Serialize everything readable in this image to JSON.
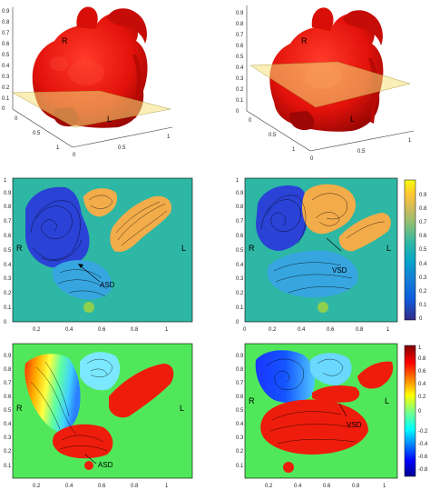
{
  "panels": {
    "heart_left": {
      "label_r": "R",
      "label_l": "L"
    },
    "heart_right": {
      "label_r": "R",
      "label_l": "L"
    },
    "mid_left": {
      "label_r": "R",
      "label_l": "L",
      "annotation": "ASD"
    },
    "mid_right": {
      "label_r": "R",
      "label_l": "L",
      "annotation": "VSD"
    },
    "bot_left": {
      "label_r": "R",
      "label_l": "L",
      "annotation": "ASD"
    },
    "bot_right": {
      "label_r": "R",
      "label_l": "L",
      "annotation": "VSD"
    }
  },
  "heart_axes": {
    "z_ticks": [
      "0",
      "0.1",
      "0.2",
      "0.3",
      "0.4",
      "0.5",
      "0.6",
      "0.7",
      "0.8",
      "0.9"
    ],
    "y_ticks": [
      "0",
      "0.5",
      "1"
    ],
    "x_ticks": [
      "0",
      "0.5",
      "1"
    ]
  },
  "flow_axes": {
    "y_ticks": [
      "0",
      "0.1",
      "0.2",
      "0.3",
      "0.4",
      "0.5",
      "0.6",
      "0.7",
      "0.8",
      "0.9",
      "1"
    ],
    "x_ticks_mid_left": [
      "0.2",
      "0.4",
      "0.6",
      "0.8",
      "1"
    ],
    "x_ticks_mid_right": [
      "0",
      "0.2",
      "0.4",
      "0.6",
      "0.8",
      "1"
    ],
    "x_ticks_bottom": [
      "0.2",
      "0.4",
      "0.6",
      "0.8",
      "1"
    ]
  },
  "colorbar_parula": {
    "ticks": [
      "0",
      "0.1",
      "0.2",
      "0.3",
      "0.4",
      "0.5",
      "0.6",
      "0.7",
      "0.8",
      "0.9"
    ],
    "colors": [
      "#352a87",
      "#0f5cdd",
      "#1481d6",
      "#06a4ca",
      "#2eb7a4",
      "#87bf77",
      "#d1bb59",
      "#fec832",
      "#f9fb0e"
    ]
  },
  "colorbar_jet": {
    "ticks": [
      "-0.8",
      "-0.6",
      "-0.4",
      "-0.2",
      "0",
      "0.2",
      "0.4",
      "0.6",
      "0.8",
      "1"
    ],
    "colors": [
      "#00008f",
      "#0000ff",
      "#0080ff",
      "#00ffff",
      "#80ff80",
      "#ffff00",
      "#ff8000",
      "#ff0000",
      "#800000"
    ]
  }
}
